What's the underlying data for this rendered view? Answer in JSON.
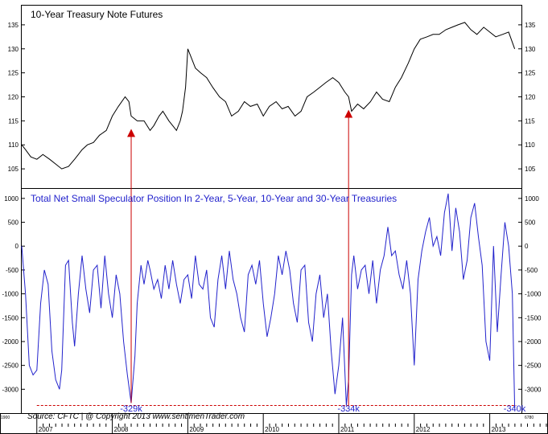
{
  "chart_data": [
    {
      "type": "line",
      "title": "10-Year Treasury Note Futures",
      "ylim": [
        101,
        139
      ],
      "yticks": [
        105,
        110,
        115,
        120,
        125,
        130,
        135
      ],
      "color": "#000000",
      "series": [
        {
          "name": "10-Year Treasury Note Futures",
          "x": [
            2006.8,
            2006.85,
            2006.92,
            2007.0,
            2007.08,
            2007.17,
            2007.25,
            2007.33,
            2007.42,
            2007.5,
            2007.55,
            2007.6,
            2007.67,
            2007.75,
            2007.83,
            2007.92,
            2008.0,
            2008.08,
            2008.17,
            2008.22,
            2008.25,
            2008.33,
            2008.42,
            2008.5,
            2008.55,
            2008.62,
            2008.67,
            2008.75,
            2008.8,
            2008.85,
            2008.9,
            2008.93,
            2008.97,
            2009.0,
            2009.05,
            2009.1,
            2009.17,
            2009.25,
            2009.33,
            2009.42,
            2009.5,
            2009.58,
            2009.67,
            2009.75,
            2009.83,
            2009.92,
            2010.0,
            2010.08,
            2010.17,
            2010.25,
            2010.33,
            2010.42,
            2010.5,
            2010.58,
            2010.67,
            2010.75,
            2010.83,
            2010.92,
            2011.0,
            2011.08,
            2011.13,
            2011.17,
            2011.25,
            2011.33,
            2011.42,
            2011.5,
            2011.58,
            2011.67,
            2011.75,
            2011.83,
            2011.92,
            2012.0,
            2012.08,
            2012.17,
            2012.25,
            2012.33,
            2012.42,
            2012.5,
            2012.58,
            2012.67,
            2012.75,
            2012.83,
            2012.92,
            2013.0,
            2013.08,
            2013.17,
            2013.25,
            2013.33
          ],
          "values": [
            110,
            109,
            107.5,
            107,
            108,
            107,
            106,
            105,
            105.5,
            107,
            108,
            109,
            110,
            110.5,
            112,
            113,
            116,
            118,
            120,
            119,
            116,
            115,
            115,
            113,
            114,
            116,
            117,
            115,
            114,
            113,
            115,
            117,
            122,
            130,
            128,
            126,
            125,
            124,
            122,
            120,
            119,
            116,
            117,
            119,
            118,
            118.5,
            116,
            118,
            119,
            117.5,
            118,
            116,
            117,
            120,
            121,
            122,
            123,
            124,
            123,
            121,
            120,
            117,
            118.5,
            117.5,
            119,
            121,
            119.5,
            119,
            122,
            124,
            127,
            130,
            132,
            132.5,
            133,
            133,
            134,
            134.5,
            135,
            135.5,
            134,
            133,
            134.5,
            133.5,
            132.5,
            133,
            133.5,
            130
          ]
        }
      ]
    },
    {
      "type": "line",
      "title": "Total Net Small Speculator Position In 2-Year, 5-Year, 10-Year and 30-Year Treasuries",
      "ylim": [
        -3500,
        1200
      ],
      "yticks": [
        1000,
        500,
        0,
        -500,
        -1000,
        -1500,
        -2000,
        -2500,
        -3000
      ],
      "color": "#2222cc",
      "series": [
        {
          "name": "Net Small Speculator Position",
          "x": [
            2006.8,
            2006.85,
            2006.9,
            2006.95,
            2007.0,
            2007.05,
            2007.1,
            2007.15,
            2007.2,
            2007.25,
            2007.3,
            2007.33,
            2007.38,
            2007.42,
            2007.47,
            2007.5,
            2007.55,
            2007.6,
            2007.65,
            2007.7,
            2007.75,
            2007.8,
            2007.85,
            2007.9,
            2007.95,
            2008.0,
            2008.05,
            2008.1,
            2008.15,
            2008.2,
            2008.25,
            2008.3,
            2008.33,
            2008.38,
            2008.42,
            2008.47,
            2008.5,
            2008.55,
            2008.6,
            2008.65,
            2008.7,
            2008.75,
            2008.8,
            2008.85,
            2008.9,
            2008.95,
            2009.0,
            2009.05,
            2009.1,
            2009.15,
            2009.2,
            2009.25,
            2009.3,
            2009.35,
            2009.4,
            2009.45,
            2009.5,
            2009.55,
            2009.6,
            2009.65,
            2009.7,
            2009.75,
            2009.8,
            2009.85,
            2009.9,
            2009.95,
            2010.0,
            2010.05,
            2010.1,
            2010.15,
            2010.2,
            2010.25,
            2010.3,
            2010.35,
            2010.4,
            2010.45,
            2010.5,
            2010.55,
            2010.6,
            2010.65,
            2010.7,
            2010.75,
            2010.8,
            2010.85,
            2010.9,
            2010.95,
            2011.0,
            2011.05,
            2011.1,
            2011.13,
            2011.17,
            2011.2,
            2011.25,
            2011.3,
            2011.35,
            2011.4,
            2011.45,
            2011.5,
            2011.55,
            2011.6,
            2011.65,
            2011.7,
            2011.75,
            2011.8,
            2011.85,
            2011.9,
            2011.95,
            2012.0,
            2012.05,
            2012.1,
            2012.15,
            2012.2,
            2012.25,
            2012.3,
            2012.35,
            2012.4,
            2012.45,
            2012.5,
            2012.55,
            2012.6,
            2012.65,
            2012.7,
            2012.75,
            2012.8,
            2012.85,
            2012.9,
            2012.95,
            2013.0,
            2013.05,
            2013.1,
            2013.15,
            2013.2,
            2013.25,
            2013.3,
            2013.33
          ],
          "values": [
            0,
            -1000,
            -2500,
            -2700,
            -2600,
            -1200,
            -500,
            -800,
            -2200,
            -2800,
            -3000,
            -2600,
            -400,
            -300,
            -1600,
            -2100,
            -1000,
            -200,
            -900,
            -1400,
            -500,
            -400,
            -1300,
            -200,
            -1000,
            -1500,
            -600,
            -1000,
            -2000,
            -2700,
            -3290,
            -2300,
            -1200,
            -400,
            -800,
            -300,
            -500,
            -900,
            -700,
            -1100,
            -400,
            -900,
            -300,
            -800,
            -1200,
            -700,
            -600,
            -1100,
            -200,
            -800,
            -900,
            -500,
            -1500,
            -1700,
            -700,
            -200,
            -900,
            -100,
            -700,
            -1000,
            -1500,
            -1800,
            -600,
            -400,
            -800,
            -300,
            -1200,
            -1900,
            -1500,
            -1000,
            -200,
            -600,
            -100,
            -500,
            -1200,
            -1600,
            -500,
            -400,
            -1600,
            -2000,
            -1000,
            -600,
            -1500,
            -1000,
            -2200,
            -3100,
            -2500,
            -1500,
            -3340,
            -2800,
            -600,
            -200,
            -900,
            -500,
            -400,
            -1000,
            -300,
            -1200,
            -500,
            -200,
            400,
            -200,
            -100,
            -600,
            -900,
            -300,
            -1000,
            -2500,
            -700,
            -100,
            300,
            600,
            0,
            200,
            -200,
            700,
            1100,
            -100,
            800,
            300,
            -700,
            -300,
            600,
            900,
            200,
            -400,
            -2000,
            -2400,
            0,
            -1800,
            -600,
            500,
            0,
            -1000,
            -3400
          ]
        }
      ],
      "annotations": [
        {
          "label": "-329k",
          "x": 2008.25,
          "y": -3290
        },
        {
          "label": "-334k",
          "x": 2011.13,
          "y": -3340
        },
        {
          "label": "-340k",
          "x": 2013.33,
          "y": -3400
        }
      ]
    }
  ],
  "x_axis": {
    "year_labels": [
      "2007",
      "2008",
      "2009",
      "2010",
      "2011",
      "2012",
      "2013"
    ],
    "xlim": [
      2006.8,
      2013.42
    ]
  },
  "source_text": "Source:  CFTC  |   @ Copyright 2013   www.sentimenTrader.com",
  "edge_label_left": "1900",
  "edge_label_right": "6780",
  "colors": {
    "price": "#000000",
    "position": "#2222cc",
    "arrow": "#cc0000",
    "threshold": "#cc0000"
  }
}
